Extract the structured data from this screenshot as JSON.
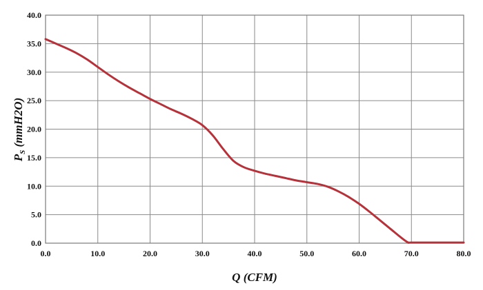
{
  "chart_data": {
    "type": "line",
    "title": "",
    "xlabel": "Q (CFM)",
    "ylabel_main": "P",
    "ylabel_sub": "S",
    "ylabel_rest": " (mmH2O)",
    "xlim": [
      0,
      80
    ],
    "ylim": [
      0,
      40
    ],
    "x_ticks": [
      "0.0",
      "10.0",
      "20.0",
      "30.0",
      "40.0",
      "50.0",
      "60.0",
      "70.0",
      "80.0"
    ],
    "y_ticks": [
      "0.0",
      "5.0",
      "10.0",
      "15.0",
      "20.0",
      "25.0",
      "30.0",
      "35.0",
      "40.0"
    ],
    "grid": true,
    "series": [
      {
        "color": "#b5323a",
        "points": [
          [
            0,
            35.8
          ],
          [
            2,
            35.0
          ],
          [
            4,
            34.2
          ],
          [
            6,
            33.3
          ],
          [
            8,
            32.2
          ],
          [
            10,
            30.9
          ],
          [
            12,
            29.6
          ],
          [
            14,
            28.4
          ],
          [
            16,
            27.3
          ],
          [
            18,
            26.3
          ],
          [
            20,
            25.3
          ],
          [
            22,
            24.4
          ],
          [
            24,
            23.5
          ],
          [
            26,
            22.7
          ],
          [
            28,
            21.8
          ],
          [
            30,
            20.7
          ],
          [
            32,
            18.9
          ],
          [
            34,
            16.5
          ],
          [
            36,
            14.4
          ],
          [
            38,
            13.3
          ],
          [
            40,
            12.7
          ],
          [
            42,
            12.2
          ],
          [
            44,
            11.8
          ],
          [
            46,
            11.4
          ],
          [
            48,
            11.0
          ],
          [
            50,
            10.7
          ],
          [
            52,
            10.4
          ],
          [
            54,
            9.9
          ],
          [
            56,
            9.1
          ],
          [
            58,
            8.1
          ],
          [
            60,
            6.9
          ],
          [
            62,
            5.5
          ],
          [
            64,
            4.0
          ],
          [
            66,
            2.5
          ],
          [
            68,
            1.0
          ],
          [
            69.3,
            0.15
          ],
          [
            70,
            0.1
          ],
          [
            75,
            0.1
          ],
          [
            80,
            0.1
          ]
        ]
      }
    ]
  }
}
